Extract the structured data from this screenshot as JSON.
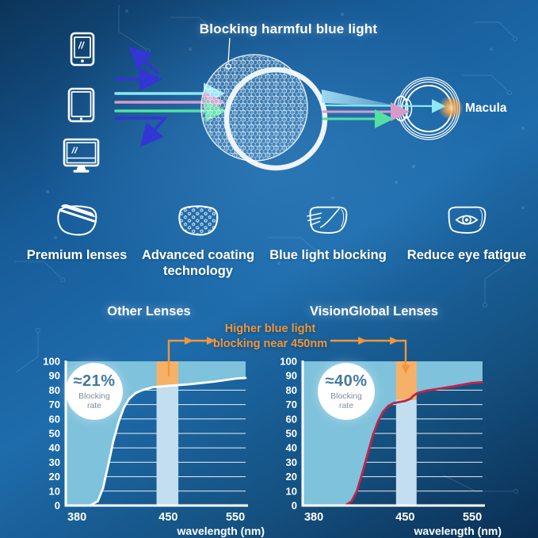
{
  "hero": {
    "title": "Blocking harmful blue light",
    "macula_label": "Macula",
    "device_icons": [
      "smartphone-icon",
      "tablet-icon",
      "monitor-icon"
    ],
    "blocked_ray_color": "#3335D5",
    "passed_ray_colors": [
      "#8FE9F4",
      "#D79BCB",
      "#53E0A1"
    ]
  },
  "features": {
    "items": [
      {
        "icon": "premium-lenses-icon",
        "label": "Premium lenses"
      },
      {
        "icon": "coating-technology-icon",
        "label": "Advanced coating technology"
      },
      {
        "icon": "blue-light-blocking-icon",
        "label": "Blue light blocking"
      },
      {
        "icon": "reduce-eye-fatigue-icon",
        "label": "Reduce eye fatigue"
      }
    ]
  },
  "comparison": {
    "annotation_line1": "Higher blue light",
    "annotation_line2": "blocking near 450nm"
  },
  "chart_data": [
    {
      "type": "area",
      "title": "Other Lenses",
      "badge": {
        "value": "≈21%",
        "label": "Blocking rate"
      },
      "xlabel": "wavelength (nm)",
      "x_ticks": [
        380,
        450,
        550
      ],
      "y_ticks": [
        0,
        10,
        20,
        30,
        40,
        50,
        60,
        70,
        80,
        90,
        100
      ],
      "xlim": [
        370,
        562
      ],
      "ylim": [
        0,
        100
      ],
      "grid": true,
      "x_anchor_fracs": [
        [
          370,
          0.0
        ],
        [
          380,
          0.062
        ],
        [
          450,
          0.57
        ],
        [
          550,
          0.943
        ],
        [
          562,
          1.0
        ]
      ],
      "band": {
        "x0": 441,
        "x1": 465,
        "below_color": "#C3DEEF",
        "above_color": "#F6B169"
      },
      "area_fill": "#7FC2DC",
      "curve_color": "#FFFFFF",
      "curve": [
        [
          370,
          0
        ],
        [
          390,
          0
        ],
        [
          396,
          3
        ],
        [
          400,
          12
        ],
        [
          404,
          28
        ],
        [
          408,
          45
        ],
        [
          412,
          58
        ],
        [
          416,
          68
        ],
        [
          420,
          74
        ],
        [
          425,
          78
        ],
        [
          430,
          80
        ],
        [
          438,
          82
        ],
        [
          450,
          83
        ],
        [
          465,
          83.5
        ],
        [
          480,
          84
        ],
        [
          500,
          85
        ],
        [
          520,
          86
        ],
        [
          550,
          88
        ],
        [
          562,
          88.5
        ]
      ]
    },
    {
      "type": "area",
      "title": "VisionGlobal Lenses",
      "badge": {
        "value": "≈40%",
        "label": "Blocking rate"
      },
      "xlabel": "wavelength (nm)",
      "x_ticks": [
        380,
        450,
        550
      ],
      "y_ticks": [
        0,
        10,
        20,
        30,
        40,
        50,
        60,
        70,
        80,
        90,
        100
      ],
      "xlim": [
        370,
        562
      ],
      "ylim": [
        0,
        100
      ],
      "grid": true,
      "x_anchor_fracs": [
        [
          370,
          0.0
        ],
        [
          380,
          0.062
        ],
        [
          450,
          0.57
        ],
        [
          550,
          0.943
        ],
        [
          562,
          1.0
        ]
      ],
      "band": {
        "x0": 443,
        "x1": 467,
        "below_color": "#C3DEEF",
        "above_color": "#F6B169"
      },
      "area_fill": "#7FC2DC",
      "curve_color": "#C22349",
      "curve": [
        [
          370,
          0
        ],
        [
          404,
          0
        ],
        [
          409,
          3
        ],
        [
          413,
          10
        ],
        [
          417,
          22
        ],
        [
          421,
          35
        ],
        [
          425,
          48
        ],
        [
          429,
          58
        ],
        [
          433,
          65
        ],
        [
          437,
          69
        ],
        [
          441,
          71
        ],
        [
          450,
          72.5
        ],
        [
          458,
          74
        ],
        [
          462,
          76
        ],
        [
          468,
          78
        ],
        [
          480,
          79.5
        ],
        [
          500,
          81
        ],
        [
          520,
          82.5
        ],
        [
          550,
          85
        ],
        [
          562,
          85.5
        ]
      ]
    }
  ],
  "colors": {
    "background_blue": "#1A64A3",
    "accent_orange": "#F0963D",
    "chart_area_fill": "#7FC2DC",
    "band_pale": "#C3DEEF",
    "band_orange": "#F6B169",
    "curve_red": "#C22349",
    "badge_value_blue": "#44799F"
  }
}
